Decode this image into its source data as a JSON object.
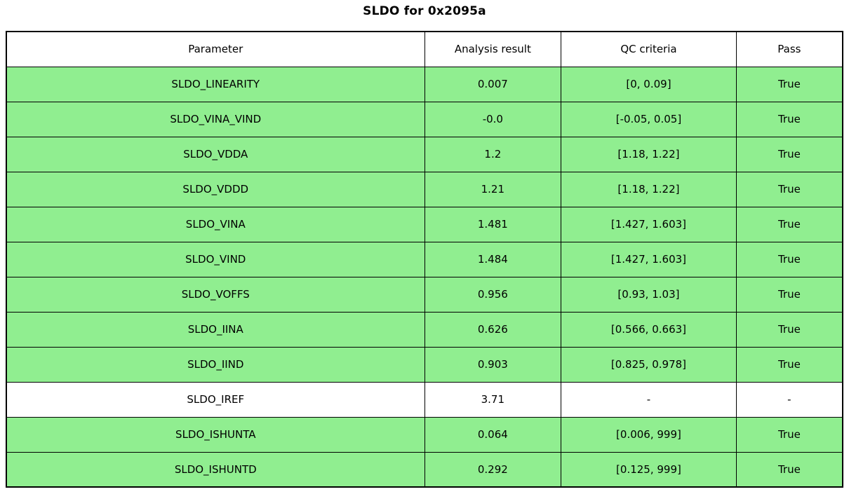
{
  "title": "SLDO for 0x2095a",
  "colors": {
    "pass_bg": "#90ee90",
    "default_bg": "#ffffff",
    "border": "#000000",
    "text": "#000000"
  },
  "chart_data": {
    "type": "table",
    "title": "SLDO for 0x2095a",
    "columns": [
      "Parameter",
      "Analysis result",
      "QC criteria",
      "Pass"
    ],
    "rows": [
      {
        "parameter": "SLDO_LINEARITY",
        "result": "0.007",
        "criteria": "[0, 0.09]",
        "pass": "True"
      },
      {
        "parameter": "SLDO_VINA_VIND",
        "result": "-0.0",
        "criteria": "[-0.05, 0.05]",
        "pass": "True"
      },
      {
        "parameter": "SLDO_VDDA",
        "result": "1.2",
        "criteria": "[1.18, 1.22]",
        "pass": "True"
      },
      {
        "parameter": "SLDO_VDDD",
        "result": "1.21",
        "criteria": "[1.18, 1.22]",
        "pass": "True"
      },
      {
        "parameter": "SLDO_VINA",
        "result": "1.481",
        "criteria": "[1.427, 1.603]",
        "pass": "True"
      },
      {
        "parameter": "SLDO_VIND",
        "result": "1.484",
        "criteria": "[1.427, 1.603]",
        "pass": "True"
      },
      {
        "parameter": "SLDO_VOFFS",
        "result": "0.956",
        "criteria": "[0.93, 1.03]",
        "pass": "True"
      },
      {
        "parameter": "SLDO_IINA",
        "result": "0.626",
        "criteria": "[0.566, 0.663]",
        "pass": "True"
      },
      {
        "parameter": "SLDO_IIND",
        "result": "0.903",
        "criteria": "[0.825, 0.978]",
        "pass": "True"
      },
      {
        "parameter": "SLDO_IREF",
        "result": "3.71",
        "criteria": "-",
        "pass": "-"
      },
      {
        "parameter": "SLDO_ISHUNTA",
        "result": "0.064",
        "criteria": "[0.006, 999]",
        "pass": "True"
      },
      {
        "parameter": "SLDO_ISHUNTD",
        "result": "0.292",
        "criteria": "[0.125, 999]",
        "pass": "True"
      }
    ]
  }
}
